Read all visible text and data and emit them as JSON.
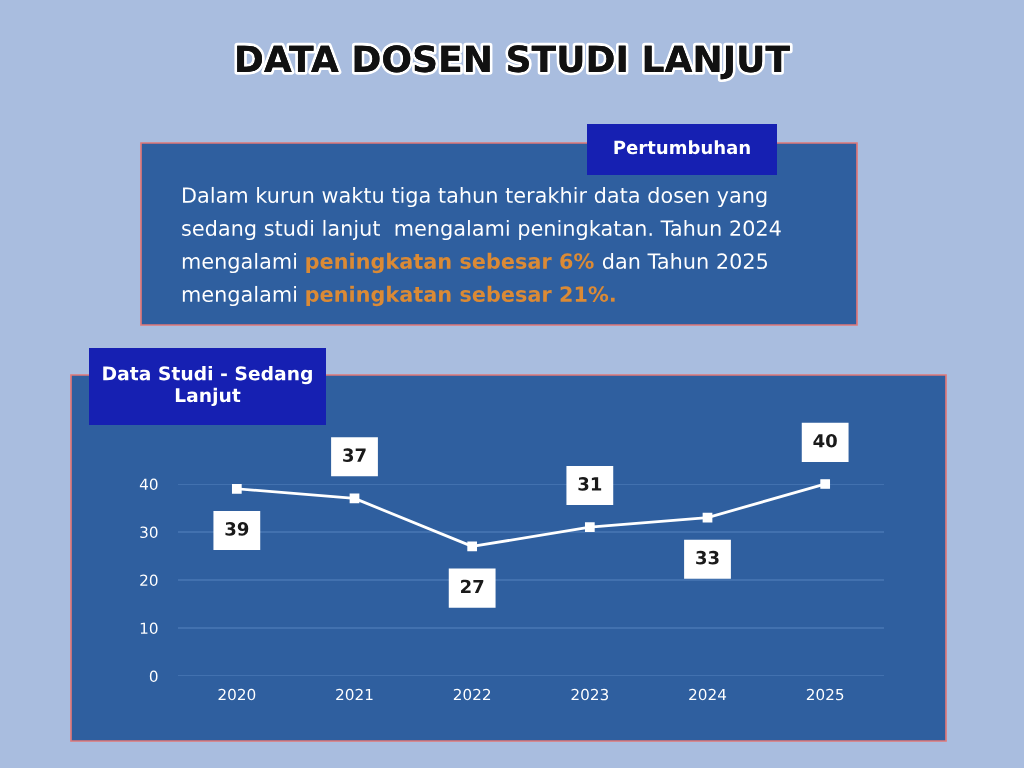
{
  "chart_data": [
    {
      "type": "other",
      "title": "DATA DOSEN STUDI LANJUT",
      "subtitle": "Pertumbuhan",
      "annotations": [
        "Dalam kurun waktu tiga tahun terakhir data dosen yang sedang studi lanjut  mengalami peningkatan. Tahun 2024",
        "mengalami",
        "peningkatan sebesar 6%",
        "dan Tahun 2025",
        "mengalami",
        "peningkatan sebesar 21%."
      ]
    },
    {
      "type": "line",
      "title": "Data Studi - Sedang Lanjut",
      "categories": [
        "2020",
        "2021",
        "2022",
        "2023",
        "2024",
        "2025"
      ],
      "values": [
        39,
        37,
        27,
        31,
        33,
        40
      ],
      "color": "#ffffff",
      "marker": "square",
      "line_style": "solid",
      "ylim": [
        0,
        40
      ],
      "yticks": [
        0,
        10,
        20,
        30,
        40
      ],
      "grid": "y",
      "data_labels": true
    }
  ]
}
